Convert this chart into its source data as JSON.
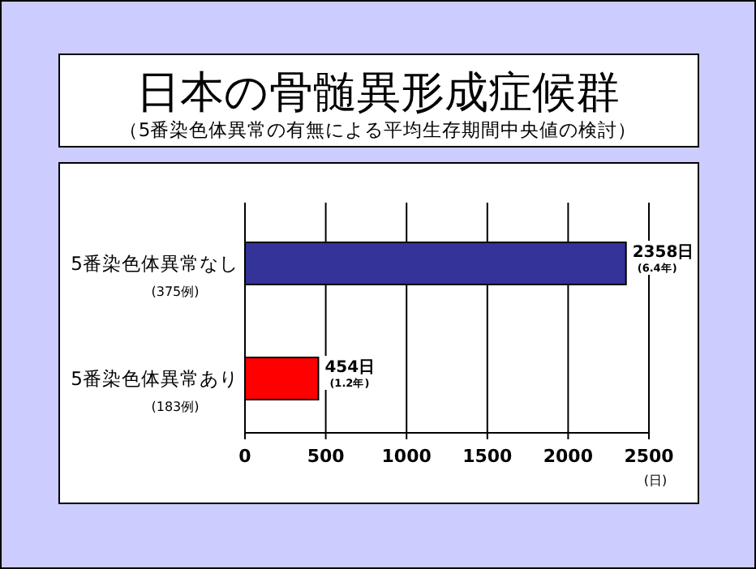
{
  "chart_data": {
    "type": "bar",
    "orientation": "horizontal",
    "title": "日本の骨髄異形成症候群",
    "subtitle": "（5番染色体異常の有無による平均生存期間中央値の検討）",
    "categories": [
      "5番染色体異常なし\n(375例)",
      "5番染色体異常あり\n(183例)"
    ],
    "values": [
      2358,
      454
    ],
    "colors": [
      "#333399",
      "#ff0000"
    ],
    "value_labels": [
      "2358日\n(6.4年)",
      "454日\n(1.2年)"
    ],
    "xlabel": "(日)",
    "xlim": [
      0,
      2500
    ],
    "xticks": [
      0,
      500,
      1000,
      1500,
      2000,
      2500
    ],
    "grid": "x"
  }
}
